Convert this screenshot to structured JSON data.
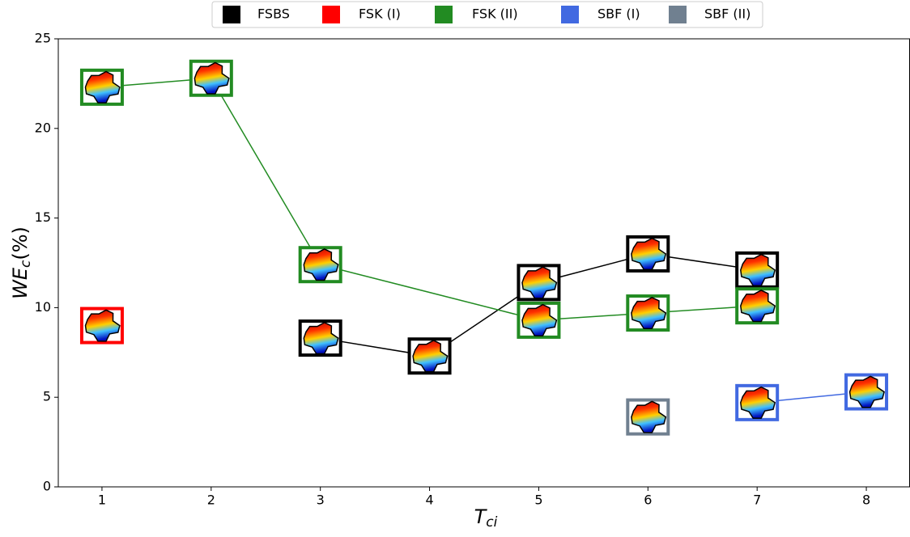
{
  "chart_data": {
    "type": "line",
    "xlabel": [
      "T",
      "ci"
    ],
    "ylabel": [
      "WE",
      "c",
      "(%)"
    ],
    "xlim": [
      0.6,
      8.4
    ],
    "ylim": [
      0,
      25
    ],
    "xticks": [
      1,
      2,
      3,
      4,
      5,
      6,
      7,
      8
    ],
    "yticks": [
      0,
      5,
      10,
      15,
      20,
      25
    ],
    "grid": false,
    "legend": "top",
    "series": [
      {
        "name": "FSBS",
        "color": "#000000",
        "x": [
          3,
          4,
          5,
          6,
          7
        ],
        "values": [
          8.3,
          7.3,
          11.4,
          13.0,
          12.1
        ]
      },
      {
        "name": "FSK (I)",
        "color": "#ff0000",
        "x": [
          1
        ],
        "values": [
          9.0
        ]
      },
      {
        "name": "FSK (II)",
        "color": "#228b22",
        "x": [
          1,
          2,
          3,
          5,
          6,
          7
        ],
        "values": [
          22.3,
          22.8,
          12.4,
          9.3,
          9.7,
          10.1
        ]
      },
      {
        "name": "SBF (I)",
        "color": "#4169e1",
        "x": [
          7,
          8
        ],
        "values": [
          4.7,
          5.3
        ]
      },
      {
        "name": "SBF (II)",
        "color": "#708090",
        "x": [
          6
        ],
        "values": [
          3.9
        ]
      }
    ]
  }
}
